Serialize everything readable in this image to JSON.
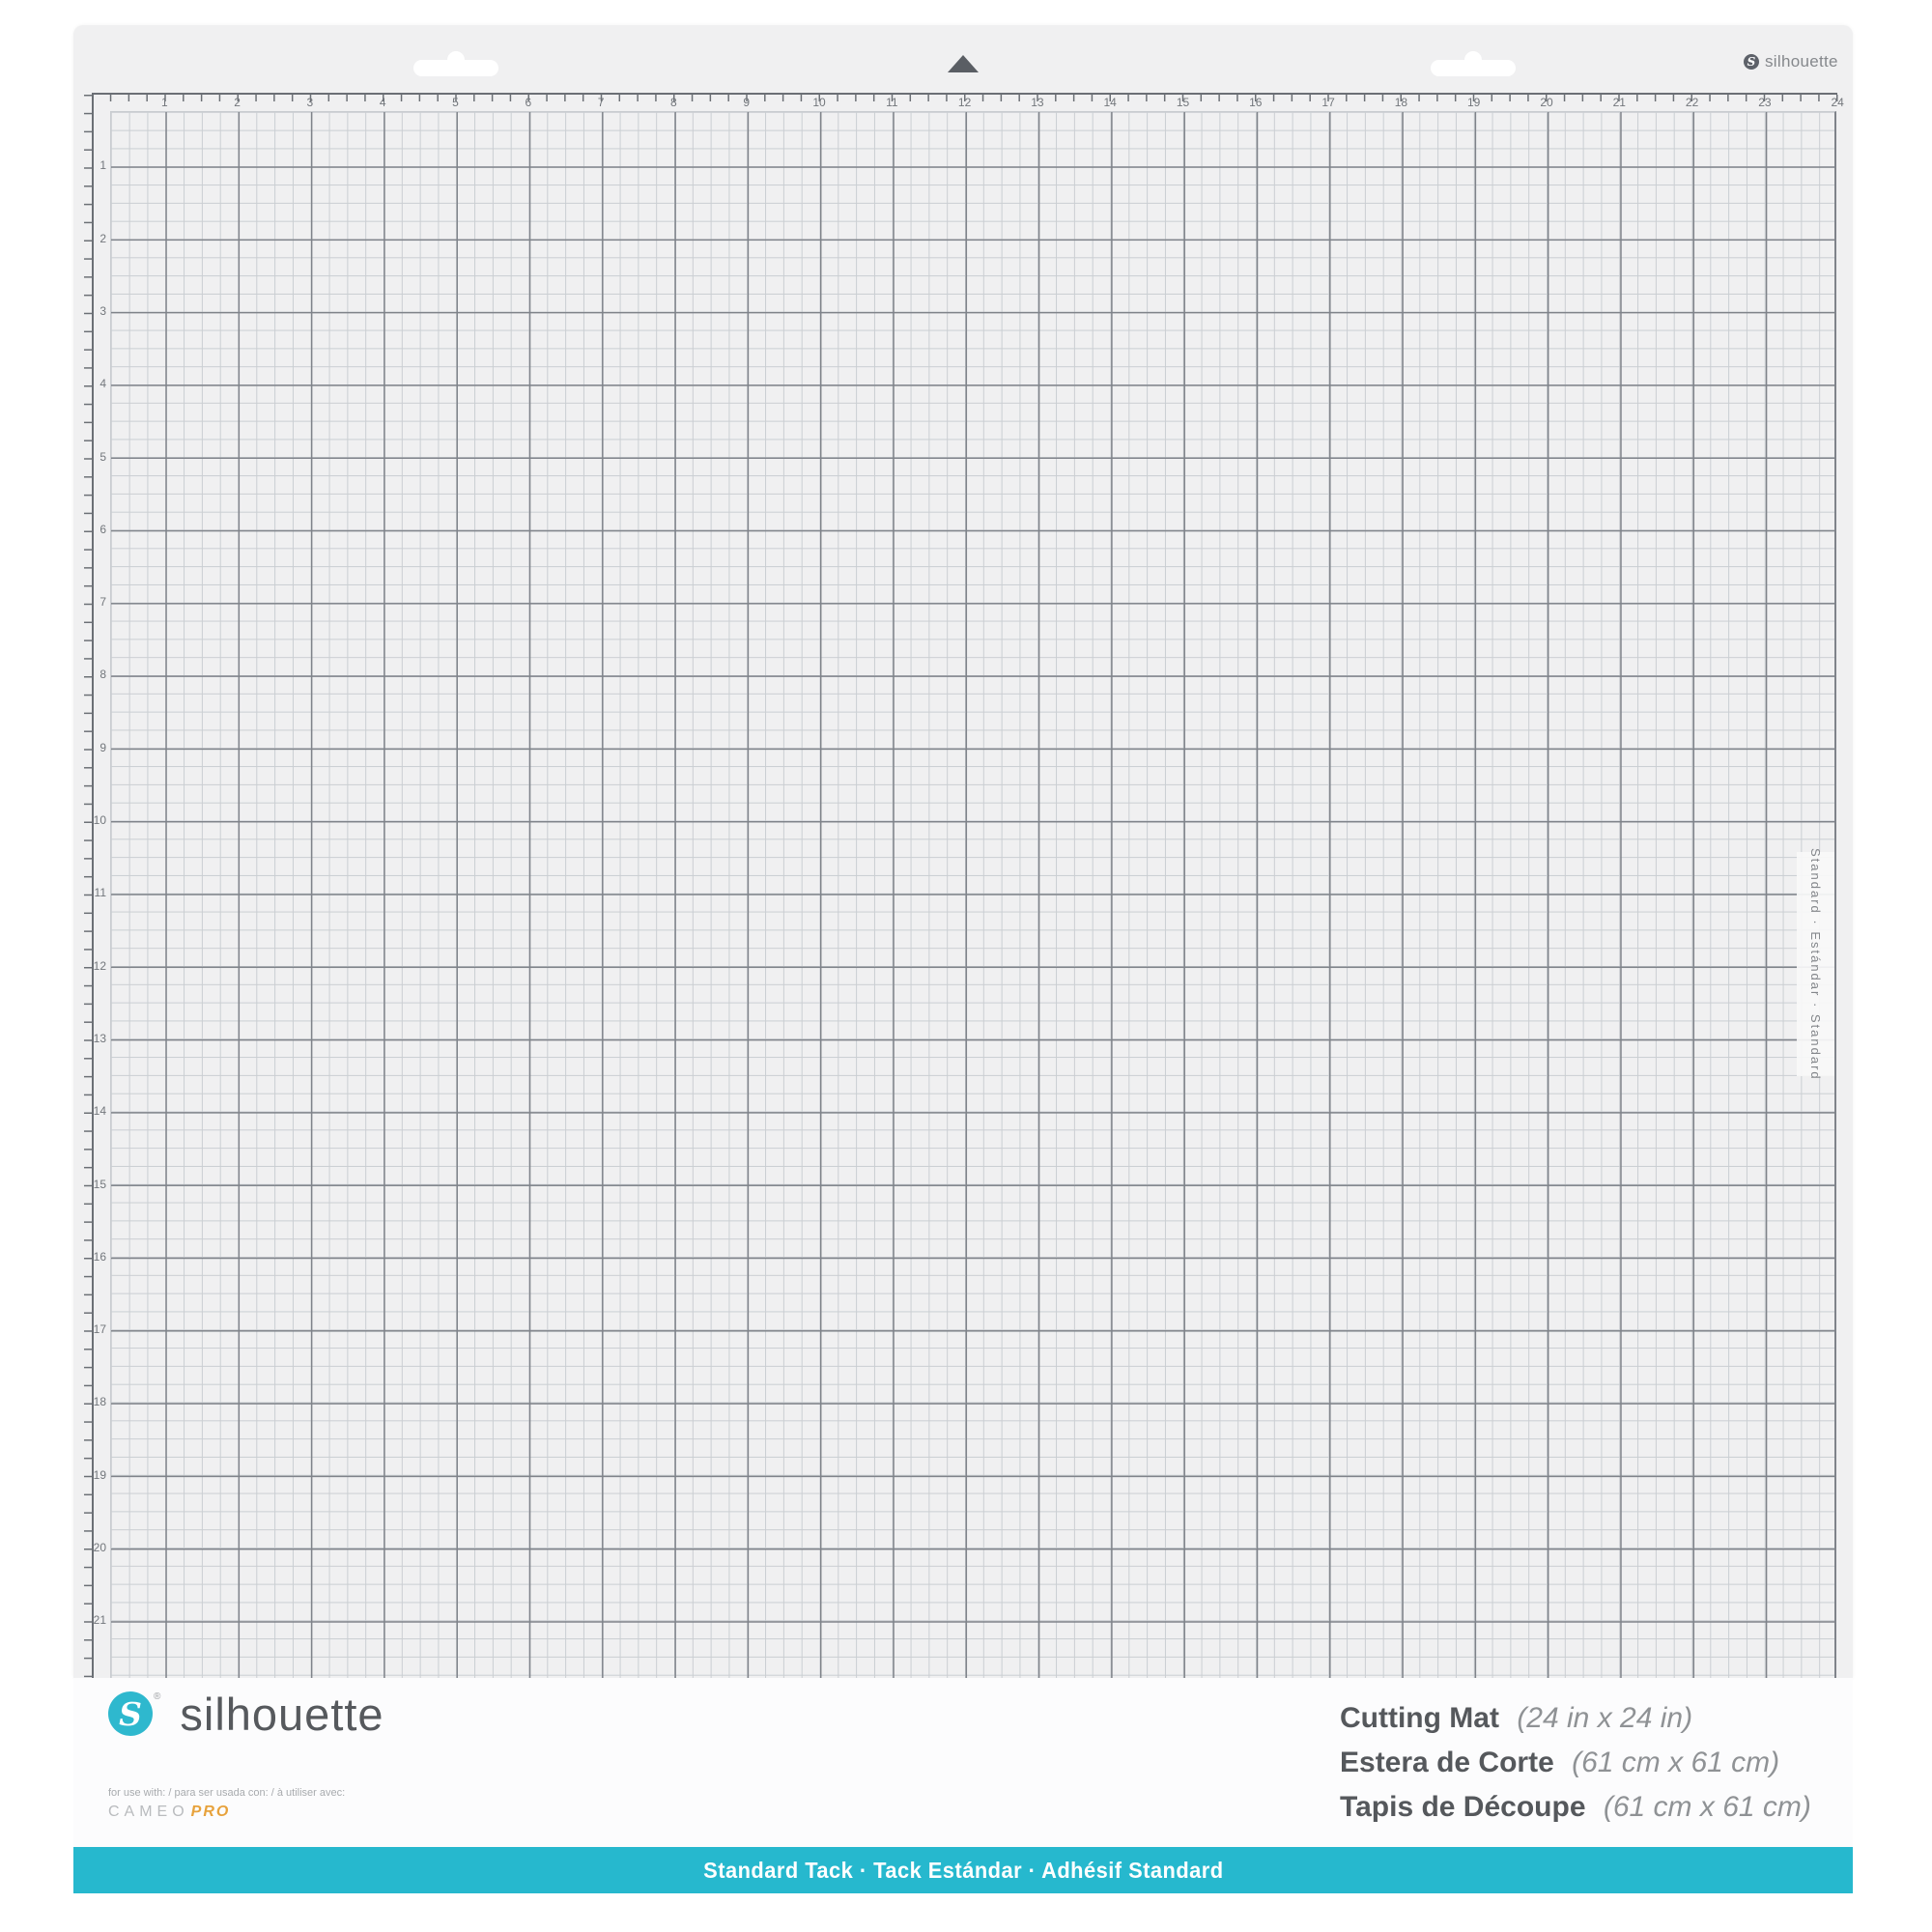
{
  "header": {
    "brand_small": "silhouette"
  },
  "icons": {
    "brand_monogram": "S",
    "center_marker": "triangle-up"
  },
  "ruler": {
    "top_numbers": [
      "1",
      "2",
      "3",
      "4",
      "5",
      "6",
      "7",
      "8",
      "9",
      "10",
      "11",
      "12",
      "13",
      "14",
      "15",
      "16",
      "17",
      "18",
      "19",
      "20",
      "21",
      "22",
      "23",
      "24"
    ],
    "left_numbers": [
      "1",
      "2",
      "3",
      "4",
      "5",
      "6",
      "7",
      "8",
      "9",
      "10",
      "11",
      "12",
      "13",
      "14",
      "15",
      "16",
      "17",
      "18",
      "19",
      "20",
      "21"
    ]
  },
  "side_label": {
    "text": "Standard  ·  Estándar  ·  Standard"
  },
  "panel": {
    "brand": "silhouette",
    "registered": "®",
    "compatibility_note": "for use with: / para ser usada con: / à utiliser avec:",
    "machine": "CAMEO",
    "machine_suffix": "PRO",
    "products": [
      {
        "name": "Cutting Mat",
        "size": "(24 in x 24 in)"
      },
      {
        "name": "Estera de Corte",
        "size": "(61 cm x 61 cm)"
      },
      {
        "name": "Tapis de Découpe",
        "size": "(61 cm x 61 cm)"
      }
    ]
  },
  "tack_bar": {
    "text": "Standard Tack  ·  Tack Estándar  ·  Adhésif Standard"
  },
  "colors": {
    "mat_background": "#f0f0f1",
    "grid_inch_line": "#7f838a",
    "grid_quarter_line": "#caced2",
    "brand_teal": "#2eb8ce",
    "tack_bar_teal": "#26b8ce",
    "cameo_pro_orange": "#e7a23c",
    "text_dark_gray": "#55585c"
  }
}
